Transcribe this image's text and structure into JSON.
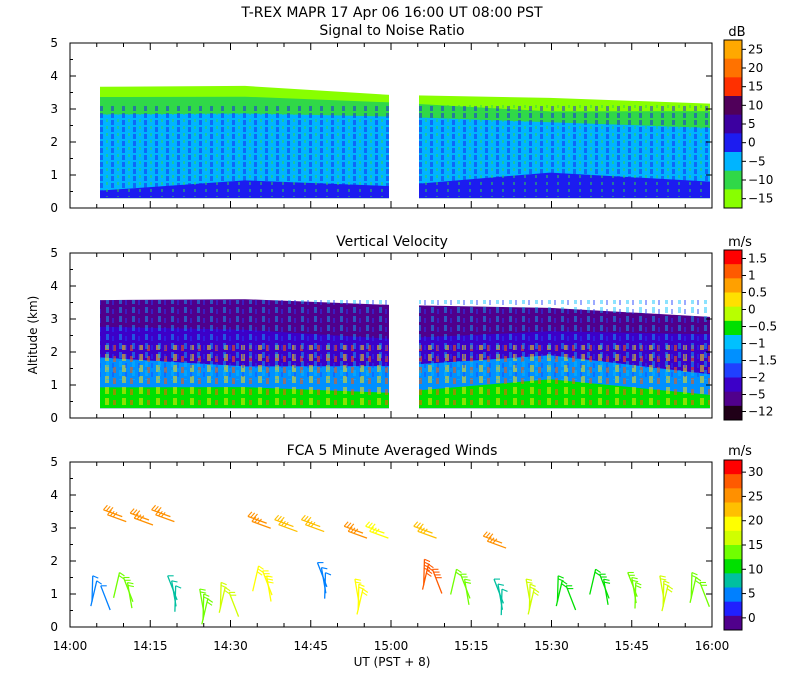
{
  "header": {
    "title": "T-REX   MAPR 17 Apr 06   16:00 UT   08:00   PST",
    "x_axis_label": "UT  (PST + 8)"
  },
  "chart_data": [
    {
      "type": "heatmap",
      "title": "Signal to Noise Ratio",
      "ylabel": "",
      "ylim": [
        0,
        5
      ],
      "yticks": [
        "0",
        "1",
        "2",
        "3",
        "4",
        "5"
      ],
      "xlim": [
        "14:00",
        "16:00"
      ],
      "colorbar_unit": "dB",
      "colorbar_ticks": [
        "25",
        "20",
        "15",
        "10",
        "5",
        "0",
        "−5",
        "−10",
        "−15"
      ],
      "colorbar_colors": [
        "#ffa800",
        "#ff7200",
        "#ff3000",
        "#50005a",
        "#3c00a0",
        "#1c1cf0",
        "#00b4ff",
        "#30d848",
        "#88ff00"
      ],
      "data_gap": [
        "14:59",
        "15:05"
      ],
      "layers": [
        {
          "level_db": -15,
          "color": "#88ff00",
          "bottom_km": 0.3,
          "top_km": [
            3.6,
            3.7,
            3.5,
            3.3,
            3.2
          ]
        },
        {
          "level_db": -10,
          "color": "#30d848",
          "bottom_km": 0.3,
          "top_km": [
            3.4,
            3.3,
            3.2,
            3.0,
            2.9
          ]
        },
        {
          "level_db": -5,
          "color": "#00b4ff",
          "bottom_km": 0.3,
          "top_km": [
            2.8,
            2.9,
            2.7,
            2.6,
            2.5
          ]
        },
        {
          "level_db": 0,
          "color": "#1c1cf0",
          "bottom_km": 0.3,
          "top_km": [
            0.6,
            0.8,
            0.7,
            1.0,
            0.8
          ]
        }
      ]
    },
    {
      "type": "heatmap",
      "title": "Vertical Velocity",
      "ylabel": "Altitude (km)",
      "ylim": [
        0,
        5
      ],
      "yticks": [
        "0",
        "1",
        "2",
        "3",
        "4",
        "5"
      ],
      "xlim": [
        "14:00",
        "16:00"
      ],
      "colorbar_unit": "m/s",
      "colorbar_ticks": [
        "1.5",
        "1",
        "0.5",
        "0",
        "−0.5",
        "−1",
        "−1.5",
        "−2",
        "−5",
        "−12"
      ],
      "colorbar_colors": [
        "#ff0000",
        "#ff5a00",
        "#ffa000",
        "#ffe000",
        "#b8ff00",
        "#00e000",
        "#00c0ff",
        "#0090ff",
        "#2040ff",
        "#3c00c8",
        "#50008c",
        "#200018"
      ],
      "data_gap": [
        "14:59",
        "15:05"
      ],
      "layers": [
        {
          "level_ms": -5,
          "color": "#50008c",
          "bottom_km": 0.3,
          "top_km": [
            3.5,
            3.6,
            3.5,
            3.3,
            3.1
          ]
        },
        {
          "level_ms": -2,
          "color": "#3c00c8",
          "bottom_km": 0.3,
          "top_km": [
            2.8,
            2.6,
            2.4,
            2.7,
            2.5
          ]
        },
        {
          "level_ms": -1,
          "color": "#0090ff",
          "bottom_km": 0.3,
          "top_km": [
            1.8,
            1.6,
            1.5,
            1.9,
            1.4
          ]
        },
        {
          "level_ms": 0,
          "color": "#00e000",
          "bottom_km": 0.3,
          "top_km": [
            1.0,
            0.9,
            0.8,
            1.1,
            0.7
          ]
        }
      ]
    },
    {
      "type": "scatter",
      "title": "FCA 5 Minute Averaged Winds",
      "ylabel": "",
      "ylim": [
        0,
        5
      ],
      "yticks": [
        "0",
        "1",
        "2",
        "3",
        "4",
        "5"
      ],
      "xlim": [
        "14:00",
        "16:00"
      ],
      "xticks": [
        "14:00",
        "14:15",
        "14:30",
        "14:45",
        "15:00",
        "15:15",
        "15:30",
        "15:45",
        "16:00"
      ],
      "colorbar_unit": "m/s",
      "colorbar_ticks": [
        "30",
        "25",
        "20",
        "15",
        "10",
        "5",
        "0"
      ],
      "colorbar_colors": [
        "#ff0000",
        "#ff5a00",
        "#ff9000",
        "#ffc000",
        "#ffff00",
        "#d0ff00",
        "#70ff00",
        "#00e000",
        "#00c0a0",
        "#0080ff",
        "#2020ff",
        "#50008c"
      ],
      "wind_groups": [
        {
          "time_min": 7,
          "altitude_km": 3.4,
          "speed_ms": 26
        },
        {
          "time_min": 12,
          "altitude_km": 3.3,
          "speed_ms": 25
        },
        {
          "time_min": 16,
          "altitude_km": 3.4,
          "speed_ms": 27
        },
        {
          "time_min": 34,
          "altitude_km": 3.2,
          "speed_ms": 25
        },
        {
          "time_min": 39,
          "altitude_km": 3.1,
          "speed_ms": 24
        },
        {
          "time_min": 44,
          "altitude_km": 3.1,
          "speed_ms": 24
        },
        {
          "time_min": 52,
          "altitude_km": 2.9,
          "speed_ms": 25
        },
        {
          "time_min": 56,
          "altitude_km": 2.9,
          "speed_ms": 21
        },
        {
          "time_min": 65,
          "altitude_km": 2.9,
          "speed_ms": 22
        },
        {
          "time_min": 78,
          "altitude_km": 2.6,
          "speed_ms": 26
        },
        {
          "time_min": 5,
          "altitude_km": 1.4,
          "speed_ms": 6
        },
        {
          "time_min": 10,
          "altitude_km": 1.5,
          "speed_ms": 14
        },
        {
          "time_min": 19,
          "altitude_km": 1.4,
          "speed_ms": 10
        },
        {
          "time_min": 25,
          "altitude_km": 1.0,
          "speed_ms": 14
        },
        {
          "time_min": 29,
          "altitude_km": 1.2,
          "speed_ms": 18
        },
        {
          "time_min": 36,
          "altitude_km": 1.7,
          "speed_ms": 20
        },
        {
          "time_min": 47,
          "altitude_km": 1.8,
          "speed_ms": 5
        },
        {
          "time_min": 54,
          "altitude_km": 1.3,
          "speed_ms": 19
        },
        {
          "time_min": 67,
          "altitude_km": 1.9,
          "speed_ms": 28
        },
        {
          "time_min": 73,
          "altitude_km": 1.6,
          "speed_ms": 15
        },
        {
          "time_min": 80,
          "altitude_km": 1.3,
          "speed_ms": 10
        },
        {
          "time_min": 86,
          "altitude_km": 1.3,
          "speed_ms": 17
        },
        {
          "time_min": 92,
          "altitude_km": 1.4,
          "speed_ms": 13
        },
        {
          "time_min": 99,
          "altitude_km": 1.6,
          "speed_ms": 12
        },
        {
          "time_min": 105,
          "altitude_km": 1.5,
          "speed_ms": 14
        },
        {
          "time_min": 111,
          "altitude_km": 1.4,
          "speed_ms": 17
        },
        {
          "time_min": 117,
          "altitude_km": 1.5,
          "speed_ms": 16
        }
      ]
    }
  ]
}
